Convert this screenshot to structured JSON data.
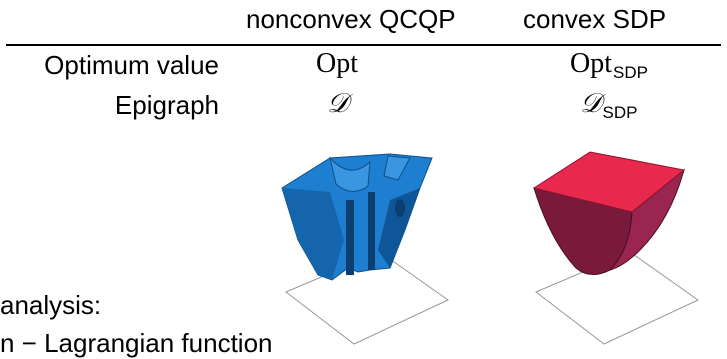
{
  "table": {
    "col_headers": [
      "nonconvex QCQP",
      "convex SDP"
    ],
    "rows": [
      {
        "label": "Optimum value",
        "nonconvex": "Opt",
        "convex_main": "Opt",
        "convex_sub": "SDP"
      },
      {
        "label": "Epigraph",
        "nonconvex": "𝒟",
        "convex_main": "𝒟",
        "convex_sub": "SDP"
      }
    ]
  },
  "figures": {
    "nonconvex_color": "#1e7fd0",
    "convex_color": "#e8284c",
    "convex_side_color": "#7a1a3a"
  },
  "footer": {
    "line1": "analysis:",
    "line2": "n − Lagrangian function"
  }
}
